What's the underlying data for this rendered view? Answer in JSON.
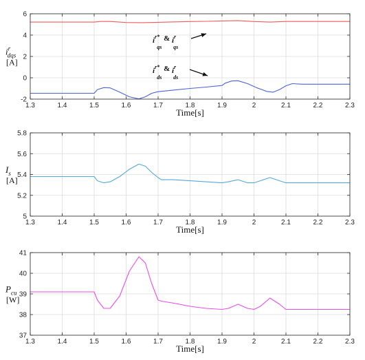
{
  "chart_data": [
    {
      "type": "line",
      "ylabel_main": "i",
      "ylabel_sup": "r",
      "ylabel_sub": "dqs",
      "yunit": "[A]",
      "xlabel": "Time[s]",
      "xlim": [
        1.3,
        2.3
      ],
      "ylim": [
        -2,
        6
      ],
      "xticks": [
        1.3,
        1.4,
        1.5,
        1.6,
        1.7,
        1.8,
        1.9,
        2,
        2.1,
        2.2,
        2.3
      ],
      "yticks": [
        -2,
        0,
        2,
        4,
        6
      ],
      "grid": true,
      "series": [
        {
          "color": "#f05a5a",
          "x": [
            1.3,
            1.4,
            1.5,
            1.52,
            1.55,
            1.6,
            1.65,
            1.7,
            1.75,
            1.8,
            1.85,
            1.9,
            1.95,
            2.0,
            2.05,
            2.1,
            2.15,
            2.2,
            2.3
          ],
          "y": [
            5.22,
            5.22,
            5.22,
            5.28,
            5.28,
            5.18,
            5.17,
            5.2,
            5.24,
            5.27,
            5.29,
            5.33,
            5.36,
            5.27,
            5.22,
            5.28,
            5.28,
            5.28,
            5.28
          ]
        },
        {
          "color": "#4d62d8",
          "x": [
            1.3,
            1.4,
            1.5,
            1.51,
            1.53,
            1.55,
            1.58,
            1.61,
            1.64,
            1.66,
            1.68,
            1.7,
            1.75,
            1.8,
            1.85,
            1.9,
            1.91,
            1.93,
            1.95,
            1.98,
            2.01,
            2.04,
            2.06,
            2.08,
            2.1,
            2.12,
            2.15,
            2.2,
            2.3
          ],
          "y": [
            -1.45,
            -1.45,
            -1.45,
            -1.1,
            -0.92,
            -0.95,
            -1.35,
            -1.78,
            -1.98,
            -1.78,
            -1.45,
            -1.3,
            -1.15,
            -1.0,
            -0.87,
            -0.72,
            -0.5,
            -0.3,
            -0.28,
            -0.55,
            -0.95,
            -1.28,
            -1.35,
            -1.1,
            -0.75,
            -0.55,
            -0.6,
            -0.6,
            -0.6
          ]
        }
      ],
      "annotations": [
        {
          "text": "i",
          "sup": "r*",
          "sub": "qs",
          "mid": " & ",
          "text2": "i",
          "sup2": "r",
          "sub2": "qs"
        },
        {
          "text": "i",
          "sup": "r*",
          "sub": "ds",
          "mid": " & ",
          "text2": "i",
          "sup2": "r",
          "sub2": "ds"
        }
      ]
    },
    {
      "type": "line",
      "ylabel_main": "I",
      "ylabel_sub": "s",
      "yunit": "[A]",
      "xlabel": "Time[s]",
      "xlim": [
        1.3,
        2.3
      ],
      "ylim": [
        5.0,
        5.8
      ],
      "xticks": [
        1.3,
        1.4,
        1.5,
        1.6,
        1.7,
        1.8,
        1.9,
        2,
        2.1,
        2.2,
        2.3
      ],
      "yticks": [
        5,
        5.2,
        5.4,
        5.6,
        5.8
      ],
      "grid": true,
      "series": [
        {
          "color": "#55a8dc",
          "x": [
            1.3,
            1.4,
            1.5,
            1.51,
            1.53,
            1.55,
            1.58,
            1.61,
            1.64,
            1.66,
            1.68,
            1.7,
            1.71,
            1.75,
            1.8,
            1.85,
            1.9,
            1.92,
            1.95,
            1.98,
            2.0,
            2.02,
            2.05,
            2.08,
            2.1,
            2.2,
            2.3
          ],
          "y": [
            5.38,
            5.38,
            5.38,
            5.34,
            5.32,
            5.33,
            5.38,
            5.45,
            5.5,
            5.48,
            5.42,
            5.37,
            5.35,
            5.35,
            5.34,
            5.33,
            5.32,
            5.33,
            5.35,
            5.32,
            5.32,
            5.34,
            5.37,
            5.34,
            5.32,
            5.32,
            5.32
          ]
        }
      ]
    },
    {
      "type": "line",
      "ylabel_main": "P",
      "ylabel_sub": "cu",
      "yunit": "[W]",
      "xlabel": "Time[s]",
      "xlim": [
        1.3,
        2.3
      ],
      "ylim": [
        37,
        41
      ],
      "xticks": [
        1.3,
        1.4,
        1.5,
        1.6,
        1.7,
        1.8,
        1.9,
        2,
        2.1,
        2.2,
        2.3
      ],
      "yticks": [
        37,
        38,
        39,
        40,
        41
      ],
      "grid": true,
      "series": [
        {
          "color": "#e84de8",
          "x": [
            1.3,
            1.4,
            1.5,
            1.51,
            1.53,
            1.55,
            1.58,
            1.61,
            1.64,
            1.66,
            1.68,
            1.7,
            1.71,
            1.75,
            1.8,
            1.85,
            1.9,
            1.92,
            1.95,
            1.98,
            2.0,
            2.02,
            2.05,
            2.08,
            2.1,
            2.2,
            2.3
          ],
          "y": [
            39.1,
            39.1,
            39.1,
            38.7,
            38.3,
            38.3,
            38.9,
            40.1,
            40.8,
            40.5,
            39.5,
            38.7,
            38.65,
            38.55,
            38.4,
            38.3,
            38.25,
            38.3,
            38.5,
            38.3,
            38.25,
            38.4,
            38.8,
            38.5,
            38.25,
            38.25,
            38.25
          ]
        }
      ]
    }
  ]
}
